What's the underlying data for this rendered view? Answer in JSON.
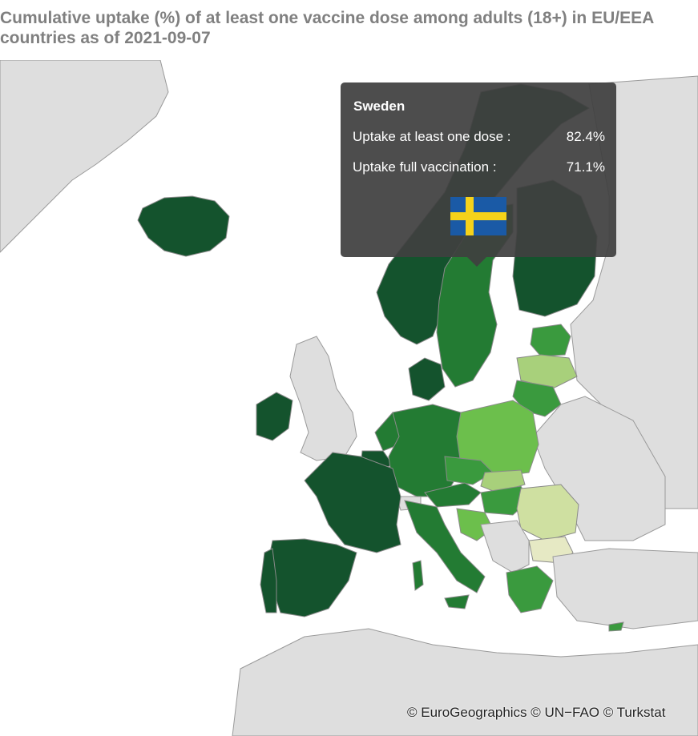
{
  "title": "Cumulative uptake (%) of at least one vaccine dose among adults (18+) in EU/EEA countries as of 2021-09-07",
  "tooltip": {
    "country": "Sweden",
    "rows": [
      {
        "label": "Uptake at least one dose :",
        "value": "82.4%"
      },
      {
        "label": "Uptake full vaccination :",
        "value": "71.1%"
      }
    ],
    "flag_icon": "sweden-flag-icon",
    "flag_colors": {
      "blue": "#1a5aa6",
      "yellow": "#f5d21a"
    }
  },
  "credit": "© EuroGeographics © UN−FAO © Turkstat",
  "colors": {
    "background_land": "#dedede",
    "uptake_very_high": "#14532d",
    "uptake_high": "#237b33",
    "uptake_mid_high": "#3a9a3e",
    "uptake_mid": "#6cbf4c",
    "uptake_low": "#a8d07b",
    "uptake_very_low": "#cfe0a1",
    "uptake_lowest": "#e6e9c4"
  }
}
